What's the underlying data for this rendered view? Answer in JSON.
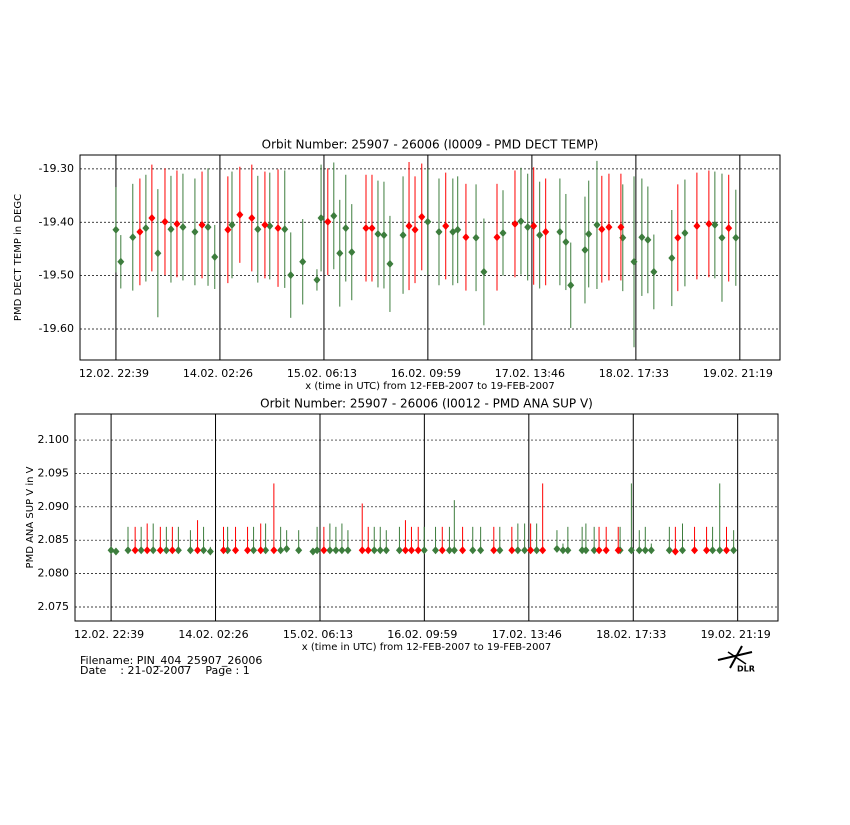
{
  "chart_data": [
    {
      "type": "errorbar",
      "title": "Orbit Number: 25907 - 26006 (I0009 - PMD DECT TEMP)",
      "x_label": "x (time in UTC) from 12-FEB-2007 to 19-FEB-2007",
      "y_label": "PMD DECT TEMP in DEGC",
      "xlim": [
        -9.6,
        177.4
      ],
      "xticks": [
        {
          "value": 0,
          "label": "12.02. 22:39"
        },
        {
          "value": 27.78,
          "label": "14.02. 02:26"
        },
        {
          "value": 55.57,
          "label": "15.02. 06:13"
        },
        {
          "value": 83.33,
          "label": "16.02. 09:59"
        },
        {
          "value": 111.12,
          "label": "17.02. 13:46"
        },
        {
          "value": 138.9,
          "label": "18.02. 17:33"
        },
        {
          "value": 166.67,
          "label": "19.02. 21:19"
        }
      ],
      "ylim": [
        -19.658,
        -19.274
      ],
      "yticks": [
        {
          "value": -19.6,
          "label": "-19.60"
        },
        {
          "value": -19.5,
          "label": "-19.50"
        },
        {
          "value": -19.4,
          "label": "-19.40"
        },
        {
          "value": -19.3,
          "label": "-19.30"
        }
      ],
      "grid": true,
      "series": [
        {
          "color": "#3d7d3d",
          "x": [
            0,
            1.3,
            4.5,
            8.0,
            11.2,
            14.7,
            17.9,
            21.1,
            24.6,
            26.4,
            31.0,
            37.9,
            41.1,
            45.1,
            46.7,
            49.9,
            53.7,
            54.8,
            58.2,
            59.8,
            61.4,
            63.0,
            70.0,
            71.6,
            73.2,
            76.7,
            83.3,
            86.3,
            90.0,
            91.3,
            96.2,
            98.3,
            103.4,
            108.2,
            110.0,
            113.2,
            118.6,
            120.2,
            121.5,
            125.3,
            126.3,
            128.5,
            135.4,
            138.4,
            140.5,
            142.1,
            143.7,
            148.5,
            152.0,
            160.0,
            161.9,
            165.6
          ],
          "values": [
            -19.414,
            -19.474,
            -19.428,
            -19.411,
            -19.458,
            -19.413,
            -19.409,
            -19.418,
            -19.409,
            -19.465,
            -19.405,
            -19.413,
            -19.407,
            -19.413,
            -19.499,
            -19.474,
            -19.508,
            -19.392,
            -19.388,
            -19.458,
            -19.411,
            -19.456,
            -19.422,
            -19.424,
            -19.478,
            -19.424,
            -19.399,
            -19.418,
            -19.418,
            -19.414,
            -19.429,
            -19.493,
            -19.42,
            -19.398,
            -19.409,
            -19.424,
            -19.418,
            -19.437,
            -19.518,
            -19.452,
            -19.422,
            -19.405,
            -19.429,
            -19.474,
            -19.428,
            -19.433,
            -19.493,
            -19.467,
            -19.42,
            -19.405,
            -19.429,
            -19.429
          ],
          "errors": [
            0.08,
            0.05,
            0.1,
            0.1,
            0.12,
            0.1,
            0.1,
            0.1,
            0.11,
            0.06,
            0.1,
            0.1,
            0.1,
            0.11,
            0.08,
            0.08,
            0.02,
            0.1,
            0.1,
            0.1,
            0.1,
            0.09,
            0.1,
            0.1,
            0.09,
            0.11,
            0.1,
            0.1,
            0.1,
            0.1,
            0.1,
            0.1,
            0.08,
            0.1,
            0.1,
            0.1,
            0.1,
            0.09,
            0.08,
            0.1,
            0.1,
            0.12,
            0.1,
            0.16,
            0.11,
            0.1,
            0.07,
            0.09,
            0.1,
            0.1,
            0.12,
            0.09
          ]
        },
        {
          "color": "#ff0000",
          "x": [
            6.4,
            9.6,
            13.1,
            16.3,
            23.0,
            29.9,
            33.1,
            36.3,
            39.8,
            43.3,
            56.6,
            66.8,
            68.4,
            78.3,
            79.9,
            81.7,
            88.1,
            93.5,
            101.8,
            106.6,
            111.6,
            114.8,
            129.8,
            131.7,
            134.9,
            150.1,
            155.2,
            158.4,
            163.7
          ],
          "values": [
            -19.418,
            -19.392,
            -19.399,
            -19.403,
            -19.405,
            -19.414,
            -19.386,
            -19.392,
            -19.405,
            -19.411,
            -19.399,
            -19.411,
            -19.411,
            -19.407,
            -19.414,
            -19.39,
            -19.407,
            -19.428,
            -19.428,
            -19.403,
            -19.407,
            -19.418,
            -19.413,
            -19.409,
            -19.409,
            -19.429,
            -19.407,
            -19.403,
            -19.411
          ],
          "errors": [
            0.1,
            0.1,
            0.1,
            0.1,
            0.1,
            0.1,
            0.09,
            0.1,
            0.1,
            0.11,
            0.1,
            0.1,
            0.1,
            0.12,
            0.1,
            0.1,
            0.1,
            0.1,
            0.1,
            0.1,
            0.11,
            0.1,
            0.1,
            0.1,
            0.1,
            0.1,
            0.1,
            0.1,
            0.1
          ]
        }
      ]
    },
    {
      "type": "rangebar",
      "title": "Orbit Number: 25907 - 26006 (I0012 - PMD ANA SUP V)",
      "x_label": "x (time in UTC) from 12-FEB-2007 to 19-FEB-2007",
      "y_label": "PMD ANA SUP V in V",
      "xlim": [
        -9.6,
        177.4
      ],
      "xticks": [
        {
          "value": 0,
          "label": "12.02. 22:39"
        },
        {
          "value": 27.78,
          "label": "14.02. 02:26"
        },
        {
          "value": 55.57,
          "label": "15.02. 06:13"
        },
        {
          "value": 83.33,
          "label": "16.02. 09:59"
        },
        {
          "value": 111.12,
          "label": "17.02. 13:46"
        },
        {
          "value": 138.9,
          "label": "18.02. 17:33"
        },
        {
          "value": 166.67,
          "label": "19.02. 21:19"
        }
      ],
      "ylim": [
        2.0729,
        2.1039
      ],
      "yticks": [
        {
          "value": 2.075,
          "label": "2.075"
        },
        {
          "value": 2.08,
          "label": "2.080"
        },
        {
          "value": 2.085,
          "label": "2.085"
        },
        {
          "value": 2.09,
          "label": "2.090"
        },
        {
          "value": 2.095,
          "label": "2.095"
        },
        {
          "value": 2.1,
          "label": "2.100"
        }
      ],
      "grid": true,
      "series": [
        {
          "color": "#3d7d3d",
          "x": [
            0,
            1.3,
            4.5,
            8.0,
            11.2,
            14.7,
            17.9,
            21.1,
            24.6,
            26.4,
            31.0,
            37.9,
            41.1,
            45.1,
            46.7,
            49.9,
            53.7,
            54.8,
            58.2,
            59.8,
            61.4,
            63.0,
            70.0,
            71.6,
            73.2,
            76.7,
            83.3,
            86.3,
            90.0,
            91.3,
            96.2,
            98.3,
            103.4,
            108.2,
            110.0,
            113.2,
            118.6,
            120.2,
            121.5,
            125.3,
            126.3,
            128.5,
            135.4,
            138.4,
            140.5,
            142.1,
            143.7,
            148.5,
            152.0,
            160.0,
            161.9,
            165.6
          ],
          "values": [
            2.0835,
            2.0833,
            2.0835,
            2.0835,
            2.0835,
            2.0835,
            2.0835,
            2.0835,
            2.0835,
            2.0833,
            2.0835,
            2.0835,
            2.0835,
            2.0835,
            2.0837,
            2.0835,
            2.0833,
            2.0835,
            2.0835,
            2.0835,
            2.0835,
            2.0835,
            2.0835,
            2.0835,
            2.0835,
            2.0835,
            2.0835,
            2.0835,
            2.0835,
            2.0835,
            2.0835,
            2.0835,
            2.0835,
            2.0835,
            2.0835,
            2.0835,
            2.0837,
            2.0835,
            2.0835,
            2.0835,
            2.0835,
            2.0835,
            2.0835,
            2.0835,
            2.0835,
            2.0835,
            2.0835,
            2.0835,
            2.0835,
            2.0835,
            2.0835,
            2.0835
          ],
          "high": [
            2.0835,
            2.0835,
            2.087,
            2.087,
            2.0875,
            2.087,
            2.087,
            2.0865,
            2.087,
            2.084,
            2.087,
            2.087,
            2.0875,
            2.087,
            2.0865,
            2.0865,
            2.0835,
            2.087,
            2.0875,
            2.087,
            2.0875,
            2.0865,
            2.087,
            2.087,
            2.0865,
            2.087,
            2.087,
            2.087,
            2.087,
            2.091,
            2.087,
            2.087,
            2.087,
            2.0875,
            2.0875,
            2.0875,
            2.0865,
            2.0845,
            2.087,
            2.087,
            2.0875,
            2.087,
            2.087,
            2.0935,
            2.0865,
            2.087,
            2.0845,
            2.087,
            2.0875,
            2.087,
            2.0935,
            2.0865
          ]
        },
        {
          "color": "#ff0000",
          "x": [
            6.4,
            9.6,
            13.1,
            16.3,
            23.0,
            29.9,
            33.1,
            36.3,
            39.8,
            43.3,
            56.6,
            66.8,
            68.4,
            78.3,
            79.9,
            81.7,
            88.1,
            93.5,
            101.8,
            106.6,
            111.6,
            114.8,
            129.8,
            131.7,
            134.9,
            150.1,
            155.2,
            158.4,
            163.7
          ],
          "values": [
            2.0835,
            2.0835,
            2.0835,
            2.0835,
            2.0835,
            2.0835,
            2.0835,
            2.0835,
            2.0835,
            2.0835,
            2.0835,
            2.0835,
            2.0835,
            2.0835,
            2.0835,
            2.0835,
            2.0835,
            2.0835,
            2.0835,
            2.0835,
            2.0835,
            2.0835,
            2.0835,
            2.0835,
            2.0835,
            2.0833,
            2.0835,
            2.0835,
            2.0835
          ],
          "high": [
            2.087,
            2.0875,
            2.087,
            2.087,
            2.088,
            2.087,
            2.087,
            2.087,
            2.0875,
            2.0935,
            2.087,
            2.0905,
            2.087,
            2.088,
            2.087,
            2.087,
            2.087,
            2.087,
            2.087,
            2.087,
            2.0875,
            2.0935,
            2.087,
            2.087,
            2.087,
            2.087,
            2.087,
            2.087,
            2.087
          ]
        }
      ]
    }
  ],
  "footer": {
    "filename": "Filename: PIN_404_25907_26006",
    "date": "Date    : 21-02-2007    Page : 1",
    "logo": "DLR"
  }
}
